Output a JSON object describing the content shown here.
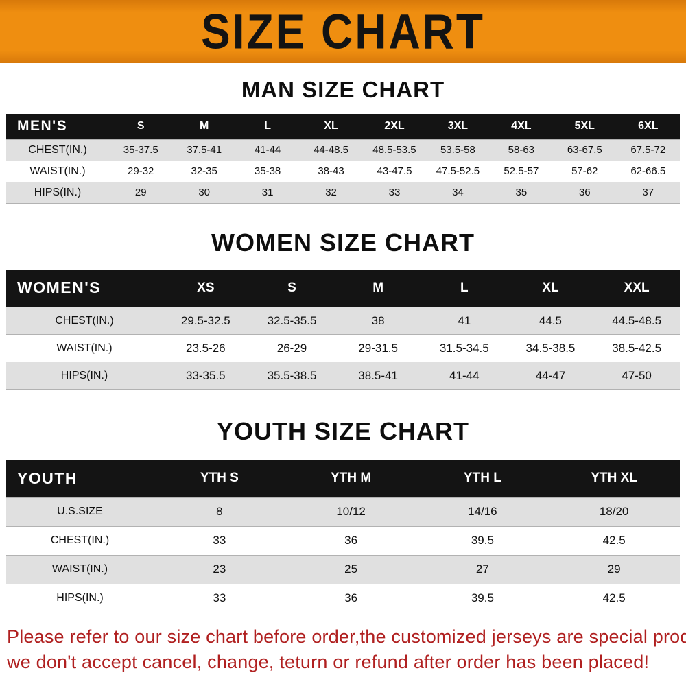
{
  "banner": {
    "title": "SIZE CHART"
  },
  "colors": {
    "banner_orange": "#EF8E10",
    "banner_orange_dark": "#D8790A",
    "header_black": "#141414",
    "stripe_gray": "#E0E0E0",
    "footer_red": "#B02020"
  },
  "sections": [
    {
      "heading": "MAN SIZE CHART",
      "table": {
        "header_label": "MEN'S",
        "columns": [
          "S",
          "M",
          "L",
          "XL",
          "2XL",
          "3XL",
          "4XL",
          "5XL",
          "6XL"
        ],
        "rows": [
          {
            "label": "CHEST(IN.)",
            "values": [
              "35-37.5",
              "37.5-41",
              "41-44",
              "44-48.5",
              "48.5-53.5",
              "53.5-58",
              "58-63",
              "63-67.5",
              "67.5-72"
            ]
          },
          {
            "label": "WAIST(IN.)",
            "values": [
              "29-32",
              "32-35",
              "35-38",
              "38-43",
              "43-47.5",
              "47.5-52.5",
              "52.5-57",
              "57-62",
              "62-66.5"
            ]
          },
          {
            "label": "HIPS(IN.)",
            "values": [
              "29",
              "30",
              "31",
              "32",
              "33",
              "34",
              "35",
              "36",
              "37"
            ]
          }
        ]
      }
    },
    {
      "heading": "WOMEN SIZE CHART",
      "table": {
        "header_label": "WOMEN'S",
        "columns": [
          "XS",
          "S",
          "M",
          "L",
          "XL",
          "XXL"
        ],
        "rows": [
          {
            "label": "CHEST(IN.)",
            "values": [
              "29.5-32.5",
              "32.5-35.5",
              "38",
              "41",
              "44.5",
              "44.5-48.5"
            ]
          },
          {
            "label": "WAIST(IN.)",
            "values": [
              "23.5-26",
              "26-29",
              "29-31.5",
              "31.5-34.5",
              "34.5-38.5",
              "38.5-42.5"
            ]
          },
          {
            "label": "HIPS(IN.)",
            "values": [
              "33-35.5",
              "35.5-38.5",
              "38.5-41",
              "41-44",
              "44-47",
              "47-50"
            ]
          }
        ]
      }
    },
    {
      "heading": "YOUTH SIZE CHART",
      "table": {
        "header_label": "YOUTH",
        "columns": [
          "YTH S",
          "YTH M",
          "YTH L",
          "YTH XL"
        ],
        "rows": [
          {
            "label": "U.S.SIZE",
            "values": [
              "8",
              "10/12",
              "14/16",
              "18/20"
            ]
          },
          {
            "label": "CHEST(IN.)",
            "values": [
              "33",
              "36",
              "39.5",
              "42.5"
            ]
          },
          {
            "label": "WAIST(IN.)",
            "values": [
              "23",
              "25",
              "27",
              "29"
            ]
          },
          {
            "label": "HIPS(IN.)",
            "values": [
              "33",
              "36",
              "39.5",
              "42.5"
            ]
          }
        ]
      }
    }
  ],
  "footer": {
    "line1": "Please refer to our size chart before order,the customized jerseys are special products,",
    "line2": "we don't accept cancel, change, teturn or refund after order has been placed!"
  }
}
